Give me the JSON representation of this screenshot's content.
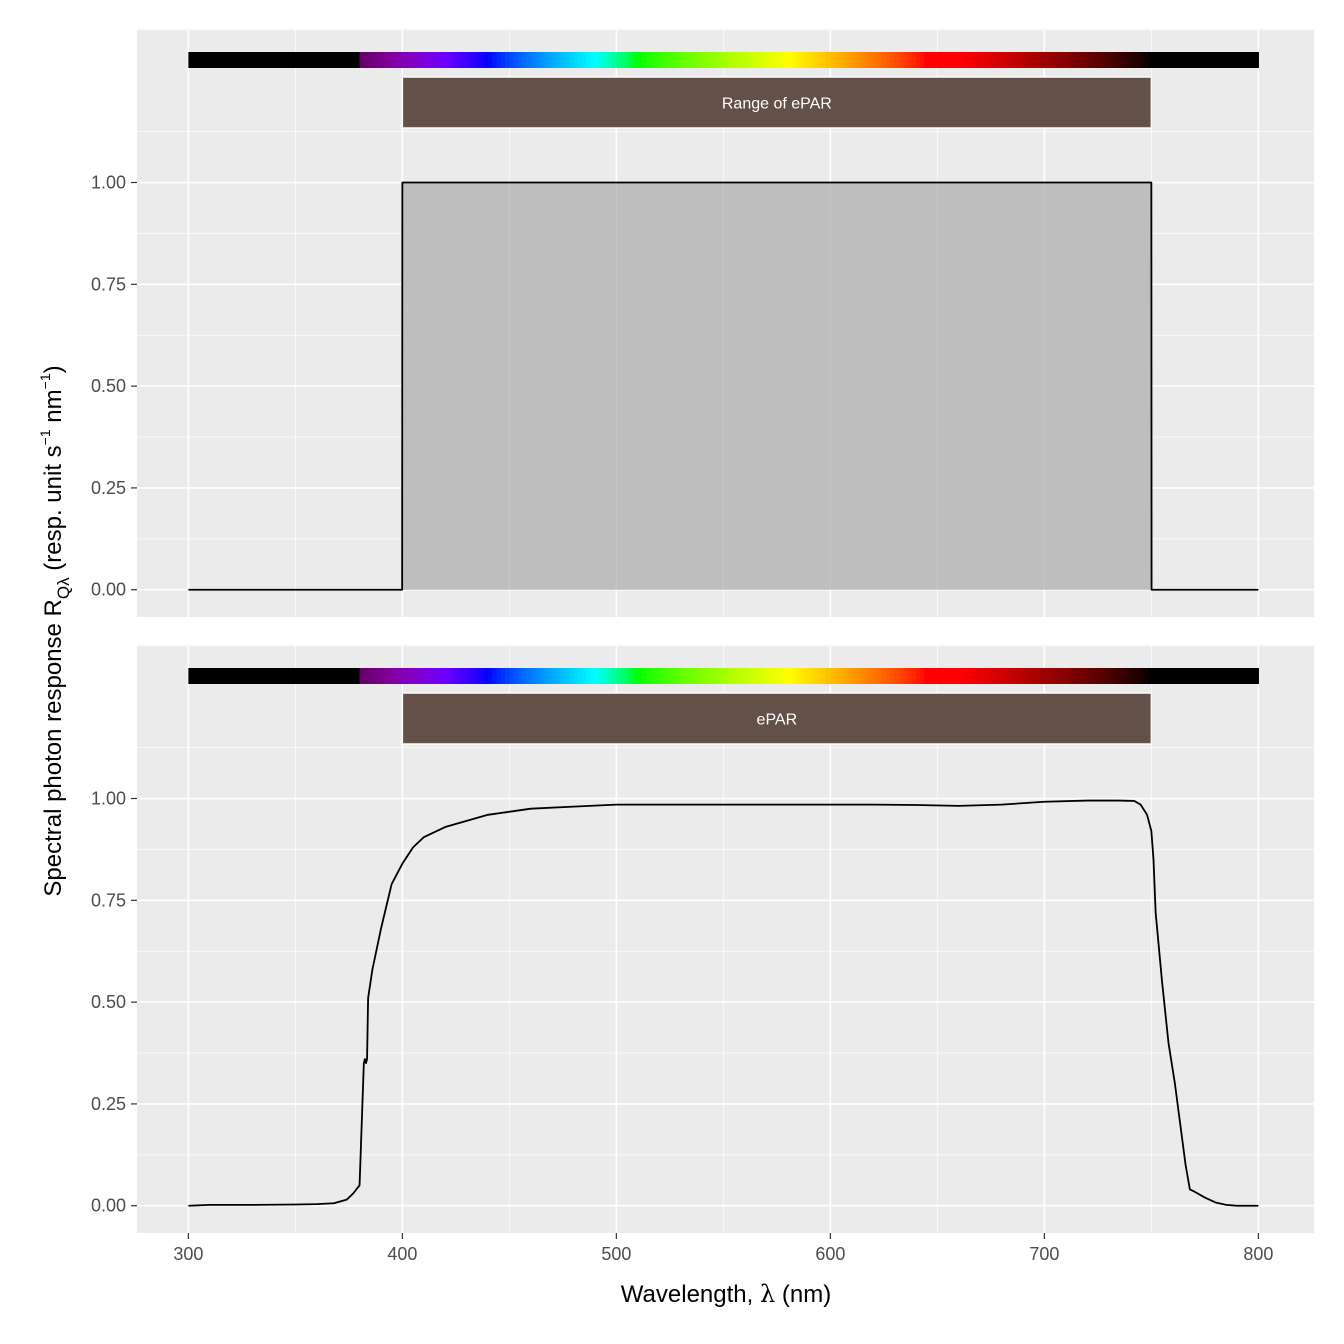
{
  "chart_data": {
    "type": "line",
    "xlabel_main": "Wavelength, ",
    "xlabel_symbol": "λ",
    "xlabel_unit": " (nm)",
    "ylabel_main": "Spectral  photon  response  R",
    "ylabel_sub": "Qλ",
    "ylabel_unit_open": "  (resp.  unit  s",
    "ylabel_exp1": "−1",
    "ylabel_unit_mid": " nm",
    "ylabel_exp2": "−1",
    "ylabel_unit_close": ")",
    "xlim": [
      276,
      826
    ],
    "ylim": [
      -0.067,
      1.377
    ],
    "x_ticks": [
      300,
      400,
      500,
      600,
      700,
      800
    ],
    "x_tick_labels": [
      "300",
      "400",
      "500",
      "600",
      "700",
      "800"
    ],
    "y_ticks": [
      0,
      0.25,
      0.5,
      0.75,
      1.0
    ],
    "y_tick_labels": [
      "0.00",
      "0.25",
      "0.50",
      "0.75",
      "1.00"
    ],
    "grid": true,
    "panel_background": "#ebebeb",
    "grid_color": "#ffffff",
    "band_color": "#635049",
    "fill_color": "#bebebe",
    "line_color": "#000000",
    "spectrum_range": [
      300,
      800
    ],
    "panels": [
      {
        "band_label": "Range of ePAR",
        "band_range": [
          400,
          750
        ],
        "filled": true,
        "series": [
          {
            "x": [
              300,
              399.9,
              400,
              750,
              750.1,
              800
            ],
            "y": [
              0,
              0,
              1,
              1,
              0,
              0
            ]
          }
        ]
      },
      {
        "band_label": "ePAR",
        "band_range": [
          400,
          750
        ],
        "filled": false,
        "series": [
          {
            "x": [
              300,
              310,
              330,
              350,
              360,
              368,
              374,
              377,
              380,
              381,
              382,
              382.5,
              383,
              383.5,
              384,
              386,
              390,
              395,
              400,
              405,
              410,
              420,
              440,
              460,
              480,
              500,
              520,
              550,
              580,
              600,
              620,
              640,
              660,
              680,
              700,
              720,
              735,
              742,
              745,
              748,
              750,
              751,
              752,
              755,
              758,
              761,
              764,
              766,
              768,
              770,
              775,
              780,
              785,
              790,
              800
            ],
            "y": [
              0,
              0.002,
              0.002,
              0.003,
              0.004,
              0.006,
              0.015,
              0.03,
              0.05,
              0.2,
              0.35,
              0.36,
              0.35,
              0.36,
              0.51,
              0.58,
              0.68,
              0.79,
              0.84,
              0.88,
              0.905,
              0.93,
              0.96,
              0.975,
              0.98,
              0.985,
              0.985,
              0.985,
              0.985,
              0.985,
              0.985,
              0.984,
              0.982,
              0.985,
              0.992,
              0.995,
              0.995,
              0.994,
              0.985,
              0.96,
              0.92,
              0.85,
              0.72,
              0.55,
              0.4,
              0.3,
              0.18,
              0.1,
              0.04,
              0.035,
              0.02,
              0.008,
              0.002,
              0,
              0
            ]
          }
        ]
      }
    ]
  }
}
